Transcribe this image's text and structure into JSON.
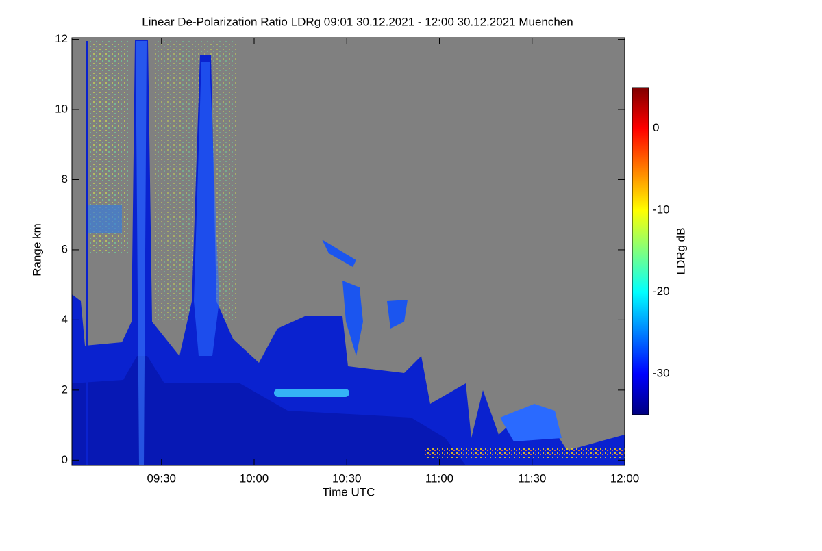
{
  "chart_data": {
    "type": "heatmap",
    "title": "Linear De-Polarization Ratio LDRg   09:01 30.12.2021 - 12:00 30.12.2021 Muenchen",
    "xlabel": "Time UTC",
    "ylabel": "Range km",
    "colorbar_label": "LDRg dB",
    "xlim": [
      9.0167,
      12.0
    ],
    "xticks": [
      {
        "value": 9.5,
        "label": "09:30"
      },
      {
        "value": 10.0,
        "label": "10:00"
      },
      {
        "value": 10.5,
        "label": "10:30"
      },
      {
        "value": 11.0,
        "label": "11:00"
      },
      {
        "value": 11.5,
        "label": "11:30"
      },
      {
        "value": 12.0,
        "label": "12:00"
      }
    ],
    "ylim": [
      -0.15,
      12.05
    ],
    "yticks": [
      0,
      2,
      4,
      6,
      8,
      10,
      12
    ],
    "clim": [
      -35,
      5
    ],
    "cticks": [
      0,
      -10,
      -20,
      -30
    ],
    "colormap": [
      "#00007f",
      "#0000ff",
      "#007fff",
      "#00ffff",
      "#7fff7f",
      "#ffff00",
      "#ff7f00",
      "#ff0000",
      "#7f0000"
    ],
    "missing_color": "#808080"
  }
}
